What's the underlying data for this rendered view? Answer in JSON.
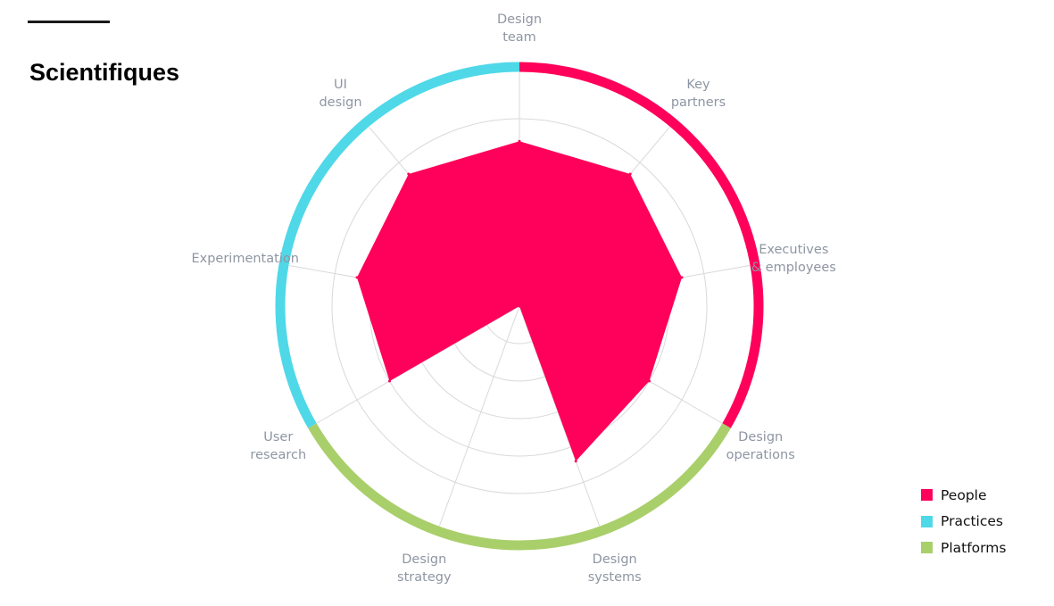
{
  "page": {
    "title": "Scientifiques"
  },
  "colors": {
    "people": "#ff005a",
    "practices": "#4fd8e8",
    "platforms": "#a9cf6b",
    "grid": "#d9d9d9",
    "label": "#8e96a3"
  },
  "chart_data": {
    "type": "radar",
    "title": "Scientifiques",
    "rmax": 5,
    "rings": [
      1,
      2,
      3,
      4,
      5
    ],
    "axes": [
      {
        "label": [
          "Design",
          "team"
        ],
        "value": 4.4,
        "group": "people"
      },
      {
        "label": [
          "Key",
          "partners"
        ],
        "value": 4.6,
        "group": "people"
      },
      {
        "label": [
          "Executives",
          "& employees"
        ],
        "value": 4.4,
        "group": "people"
      },
      {
        "label": [
          "Design",
          "operations"
        ],
        "value": 4.0,
        "group": "platforms"
      },
      {
        "label": [
          "Design",
          "systems"
        ],
        "value": 4.4,
        "group": "platforms"
      },
      {
        "label": [
          "Design",
          "strategy"
        ],
        "value": 0,
        "group": "platforms"
      },
      {
        "label": [
          "User",
          "research"
        ],
        "value": 4.0,
        "group": "practices"
      },
      {
        "label": [
          "Experimentation"
        ],
        "value": 4.4,
        "group": "practices"
      },
      {
        "label": [
          "UI",
          "design"
        ],
        "value": 4.6,
        "group": "practices"
      }
    ],
    "legend": [
      {
        "key": "people",
        "label": "People"
      },
      {
        "key": "practices",
        "label": "Practices"
      },
      {
        "key": "platforms",
        "label": "Platforms"
      }
    ],
    "legend_position": "bottom-right"
  }
}
